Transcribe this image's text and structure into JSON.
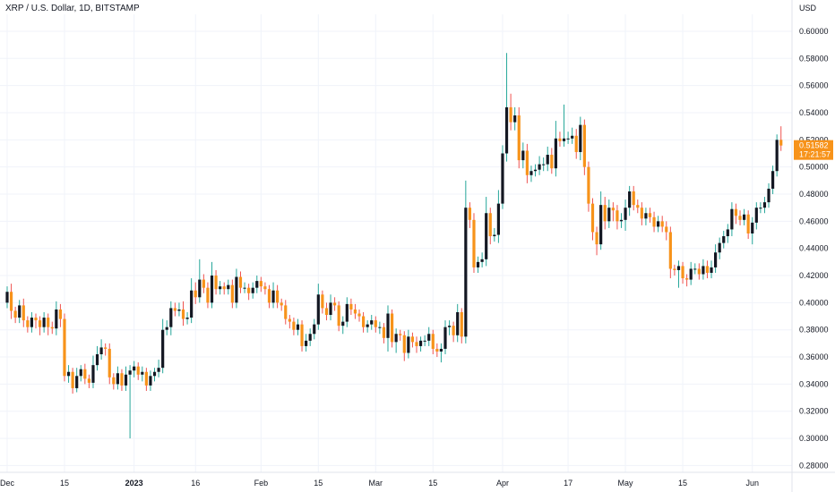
{
  "header": {
    "title": "XRP / U.S. Dollar, 1D, BITSTAMP",
    "currency": "USD"
  },
  "price_tag": {
    "price": "0.51582",
    "countdown": "17:21:57",
    "color": "#f7931a"
  },
  "colors": {
    "up": "#131722",
    "down": "#f7931a",
    "wick_up": "#26a69a",
    "wick_down": "#ef5350",
    "grid": "#f0f3fa"
  },
  "chart_data": {
    "type": "candlestick",
    "title": "XRP / U.S. Dollar, 1D, BITSTAMP",
    "ylabel": "USD",
    "ylim": [
      0.275,
      0.6125
    ],
    "y_ticks": [
      "0.28000",
      "0.30000",
      "0.32000",
      "0.34000",
      "0.36000",
      "0.38000",
      "0.40000",
      "0.42000",
      "0.44000",
      "0.46000",
      "0.48000",
      "0.50000",
      "0.52000",
      "0.54000",
      "0.56000",
      "0.58000",
      "0.60000"
    ],
    "x_ticks": [
      {
        "label": "Dec",
        "day": 0
      },
      {
        "label": "15",
        "day": 14
      },
      {
        "label": "2023",
        "day": 31
      },
      {
        "label": "16",
        "day": 46
      },
      {
        "label": "Feb",
        "day": 62
      },
      {
        "label": "15",
        "day": 76
      },
      {
        "label": "Mar",
        "day": 90
      },
      {
        "label": "15",
        "day": 104
      },
      {
        "label": "Apr",
        "day": 121
      },
      {
        "label": "17",
        "day": 137
      },
      {
        "label": "May",
        "day": 151
      },
      {
        "label": "15",
        "day": 165
      },
      {
        "label": "Jun",
        "day": 182
      }
    ],
    "grid": true,
    "last_price": 0.51582,
    "close": [
      0.408,
      0.394,
      0.389,
      0.398,
      0.387,
      0.382,
      0.389,
      0.387,
      0.382,
      0.389,
      0.382,
      0.381,
      0.395,
      0.388,
      0.346,
      0.349,
      0.337,
      0.346,
      0.351,
      0.344,
      0.341,
      0.354,
      0.362,
      0.367,
      0.366,
      0.345,
      0.34,
      0.348,
      0.339,
      0.347,
      0.35,
      0.353,
      0.347,
      0.349,
      0.339,
      0.346,
      0.349,
      0.352,
      0.38,
      0.382,
      0.396,
      0.394,
      0.395,
      0.388,
      0.389,
      0.409,
      0.404,
      0.417,
      0.411,
      0.4,
      0.42,
      0.41,
      0.412,
      0.41,
      0.413,
      0.4,
      0.419,
      0.411,
      0.411,
      0.407,
      0.411,
      0.416,
      0.412,
      0.41,
      0.4,
      0.409,
      0.4,
      0.398,
      0.388,
      0.386,
      0.38,
      0.384,
      0.368,
      0.372,
      0.377,
      0.384,
      0.406,
      0.396,
      0.391,
      0.4,
      0.398,
      0.383,
      0.386,
      0.399,
      0.395,
      0.392,
      0.39,
      0.382,
      0.384,
      0.387,
      0.382,
      0.382,
      0.374,
      0.392,
      0.371,
      0.377,
      0.376,
      0.363,
      0.375,
      0.371,
      0.368,
      0.372,
      0.372,
      0.377,
      0.366,
      0.364,
      0.366,
      0.382,
      0.383,
      0.376,
      0.393,
      0.375,
      0.47,
      0.461,
      0.426,
      0.43,
      0.432,
      0.466,
      0.449,
      0.45,
      0.473,
      0.51,
      0.544,
      0.533,
      0.538,
      0.505,
      0.512,
      0.494,
      0.497,
      0.498,
      0.502,
      0.502,
      0.509,
      0.499,
      0.521,
      0.519,
      0.521,
      0.521,
      0.523,
      0.511,
      0.531,
      0.5,
      0.473,
      0.452,
      0.443,
      0.472,
      0.46,
      0.47,
      0.468,
      0.46,
      0.461,
      0.47,
      0.482,
      0.472,
      0.47,
      0.462,
      0.466,
      0.463,
      0.456,
      0.46,
      0.456,
      0.452,
      0.425,
      0.424,
      0.427,
      0.418,
      0.417,
      0.425,
      0.425,
      0.421,
      0.427,
      0.422,
      0.426,
      0.437,
      0.444,
      0.449,
      0.454,
      0.469,
      0.464,
      0.461,
      0.465,
      0.451,
      0.459,
      0.47,
      0.47,
      0.474,
      0.484,
      0.497,
      0.52,
      0.51582
    ],
    "open": [
      0.4,
      0.408,
      0.394,
      0.389,
      0.398,
      0.387,
      0.382,
      0.389,
      0.387,
      0.382,
      0.389,
      0.382,
      0.381,
      0.395,
      0.388,
      0.346,
      0.349,
      0.337,
      0.346,
      0.351,
      0.344,
      0.341,
      0.354,
      0.362,
      0.367,
      0.366,
      0.345,
      0.34,
      0.348,
      0.339,
      0.347,
      0.35,
      0.353,
      0.347,
      0.349,
      0.339,
      0.346,
      0.349,
      0.352,
      0.38,
      0.382,
      0.396,
      0.394,
      0.395,
      0.388,
      0.389,
      0.409,
      0.404,
      0.417,
      0.411,
      0.4,
      0.42,
      0.41,
      0.412,
      0.41,
      0.413,
      0.4,
      0.419,
      0.411,
      0.411,
      0.407,
      0.411,
      0.416,
      0.412,
      0.41,
      0.4,
      0.409,
      0.4,
      0.398,
      0.388,
      0.386,
      0.38,
      0.384,
      0.368,
      0.372,
      0.377,
      0.384,
      0.406,
      0.396,
      0.391,
      0.4,
      0.398,
      0.383,
      0.386,
      0.399,
      0.395,
      0.392,
      0.39,
      0.382,
      0.384,
      0.387,
      0.382,
      0.382,
      0.374,
      0.392,
      0.371,
      0.377,
      0.376,
      0.363,
      0.375,
      0.371,
      0.368,
      0.372,
      0.372,
      0.377,
      0.366,
      0.364,
      0.366,
      0.382,
      0.383,
      0.376,
      0.393,
      0.375,
      0.47,
      0.461,
      0.426,
      0.43,
      0.432,
      0.466,
      0.449,
      0.45,
      0.473,
      0.51,
      0.544,
      0.533,
      0.538,
      0.505,
      0.512,
      0.494,
      0.497,
      0.498,
      0.502,
      0.502,
      0.509,
      0.499,
      0.521,
      0.519,
      0.521,
      0.521,
      0.523,
      0.511,
      0.531,
      0.5,
      0.473,
      0.452,
      0.443,
      0.472,
      0.46,
      0.47,
      0.468,
      0.46,
      0.461,
      0.47,
      0.482,
      0.472,
      0.47,
      0.462,
      0.466,
      0.463,
      0.456,
      0.46,
      0.456,
      0.452,
      0.425,
      0.424,
      0.427,
      0.418,
      0.417,
      0.425,
      0.425,
      0.421,
      0.427,
      0.422,
      0.426,
      0.437,
      0.444,
      0.449,
      0.454,
      0.469,
      0.464,
      0.461,
      0.465,
      0.451,
      0.459,
      0.47,
      0.47,
      0.474,
      0.484,
      0.497,
      0.52
    ],
    "high_pad": [
      0.004,
      0.006,
      0.003,
      0.004,
      0.005,
      0.003,
      0.004,
      0.003,
      0.003,
      0.004,
      0.003,
      0.004,
      0.006,
      0.004,
      0.004,
      0.005,
      0.003,
      0.006,
      0.003,
      0.004,
      0.003,
      0.007,
      0.006,
      0.006,
      0.003,
      0.004,
      0.003,
      0.005,
      0.003,
      0.006,
      0.004,
      0.004,
      0.003,
      0.004,
      0.003,
      0.004,
      0.003,
      0.006,
      0.008,
      0.005,
      0.005,
      0.004,
      0.005,
      0.006,
      0.004,
      0.009,
      0.006,
      0.015,
      0.004,
      0.004,
      0.01,
      0.004,
      0.004,
      0.003,
      0.004,
      0.004,
      0.006,
      0.004,
      0.004,
      0.003,
      0.004,
      0.004,
      0.003,
      0.003,
      0.003,
      0.006,
      0.004,
      0.003,
      0.004,
      0.003,
      0.003,
      0.004,
      0.003,
      0.005,
      0.004,
      0.004,
      0.008,
      0.003,
      0.004,
      0.006,
      0.004,
      0.003,
      0.004,
      0.005,
      0.004,
      0.004,
      0.003,
      0.003,
      0.003,
      0.004,
      0.003,
      0.004,
      0.003,
      0.006,
      0.003,
      0.004,
      0.003,
      0.003,
      0.005,
      0.003,
      0.004,
      0.003,
      0.004,
      0.005,
      0.003,
      0.004,
      0.004,
      0.005,
      0.004,
      0.003,
      0.006,
      0.003,
      0.02,
      0.004,
      0.005,
      0.004,
      0.005,
      0.012,
      0.004,
      0.005,
      0.01,
      0.006,
      0.04,
      0.01,
      0.006,
      0.006,
      0.006,
      0.005,
      0.004,
      0.004,
      0.006,
      0.005,
      0.006,
      0.005,
      0.013,
      0.005,
      0.025,
      0.005,
      0.006,
      0.005,
      0.006,
      0.004,
      0.004,
      0.004,
      0.004,
      0.01,
      0.006,
      0.006,
      0.004,
      0.004,
      0.005,
      0.006,
      0.004,
      0.004,
      0.004,
      0.004,
      0.004,
      0.004,
      0.004,
      0.004,
      0.004,
      0.004,
      0.004,
      0.003,
      0.004,
      0.003,
      0.003,
      0.005,
      0.004,
      0.004,
      0.005,
      0.004,
      0.005,
      0.006,
      0.004,
      0.004,
      0.004,
      0.005,
      0.004,
      0.004,
      0.004,
      0.003,
      0.004,
      0.004,
      0.004,
      0.004,
      0.004,
      0.004,
      0.004,
      0.01,
      0.006
    ],
    "low_pad": [
      0.004,
      0.006,
      0.004,
      0.004,
      0.005,
      0.004,
      0.004,
      0.006,
      0.006,
      0.004,
      0.006,
      0.004,
      0.005,
      0.006,
      0.004,
      0.005,
      0.004,
      0.003,
      0.004,
      0.004,
      0.004,
      0.004,
      0.004,
      0.004,
      0.005,
      0.005,
      0.004,
      0.004,
      0.004,
      0.004,
      0.047,
      0.005,
      0.004,
      0.005,
      0.004,
      0.004,
      0.004,
      0.004,
      0.004,
      0.004,
      0.006,
      0.004,
      0.004,
      0.005,
      0.004,
      0.004,
      0.005,
      0.004,
      0.004,
      0.004,
      0.004,
      0.004,
      0.004,
      0.004,
      0.004,
      0.004,
      0.004,
      0.004,
      0.004,
      0.005,
      0.004,
      0.004,
      0.004,
      0.004,
      0.004,
      0.004,
      0.004,
      0.004,
      0.004,
      0.005,
      0.004,
      0.004,
      0.004,
      0.004,
      0.004,
      0.004,
      0.004,
      0.004,
      0.004,
      0.004,
      0.004,
      0.004,
      0.006,
      0.004,
      0.004,
      0.004,
      0.004,
      0.004,
      0.004,
      0.004,
      0.004,
      0.005,
      0.004,
      0.01,
      0.004,
      0.008,
      0.004,
      0.006,
      0.004,
      0.004,
      0.005,
      0.004,
      0.004,
      0.004,
      0.004,
      0.004,
      0.008,
      0.004,
      0.006,
      0.005,
      0.005,
      0.005,
      0.005,
      0.006,
      0.004,
      0.004,
      0.004,
      0.005,
      0.006,
      0.004,
      0.006,
      0.004,
      0.006,
      0.006,
      0.006,
      0.006,
      0.006,
      0.006,
      0.005,
      0.004,
      0.004,
      0.005,
      0.005,
      0.004,
      0.006,
      0.004,
      0.004,
      0.004,
      0.004,
      0.005,
      0.006,
      0.006,
      0.006,
      0.006,
      0.008,
      0.004,
      0.006,
      0.005,
      0.008,
      0.006,
      0.005,
      0.008,
      0.006,
      0.004,
      0.004,
      0.005,
      0.005,
      0.004,
      0.004,
      0.004,
      0.004,
      0.006,
      0.007,
      0.004,
      0.013,
      0.004,
      0.005,
      0.004,
      0.004,
      0.004,
      0.004,
      0.004,
      0.004,
      0.004,
      0.005,
      0.004,
      0.005,
      0.005,
      0.006,
      0.004,
      0.004,
      0.004,
      0.008,
      0.005,
      0.004,
      0.004,
      0.004,
      0.004,
      0.004,
      0.004,
      0.004
    ]
  }
}
